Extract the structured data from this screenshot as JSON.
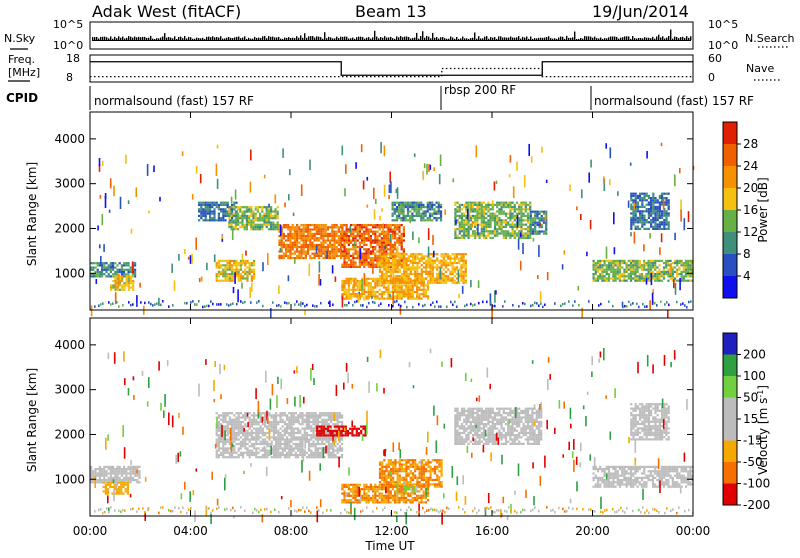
{
  "header": {
    "title": "Adak West (fitACF)",
    "beam": "Beam 13",
    "date": "19/Jun/2014"
  },
  "nsky_panel": {
    "left_label": "N.Sky",
    "right_label": "N.Search",
    "left_ticks": [
      "10^5",
      "10^0"
    ],
    "right_ticks": [
      "10^5",
      "10^0"
    ]
  },
  "freq_panel": {
    "left_label": "Freq.",
    "left_unit": "[MHz]",
    "right_label": "Nave",
    "left_ticks": [
      "18",
      "8"
    ],
    "right_ticks": [
      "60",
      "0"
    ],
    "freq_steps": [
      {
        "start_h": 0,
        "end_h": 10,
        "mhz": 15.5
      },
      {
        "start_h": 10,
        "end_h": 18,
        "mhz": 10.5
      },
      {
        "start_h": 18,
        "end_h": 24,
        "mhz": 15.5
      }
    ],
    "nave_steps": [
      {
        "start_h": 0,
        "end_h": 14,
        "value": 12
      },
      {
        "start_h": 14,
        "end_h": 18,
        "value": 30
      },
      {
        "start_h": 18,
        "end_h": 24,
        "value": 12
      }
    ]
  },
  "cpid": {
    "label": "CPID",
    "segments": [
      {
        "label": "normalsound (fast) 157 RF",
        "start_h": 0,
        "end_h": 14
      },
      {
        "label": "rbsp 200 RF",
        "start_h": 14,
        "end_h": 20
      },
      {
        "label": "normalsound (fast) 157 RF",
        "start_h": 20,
        "end_h": 24
      }
    ]
  },
  "axes": {
    "ylabel": "Slant Range [km]",
    "yticks": [
      "1000",
      "2000",
      "3000",
      "4000"
    ],
    "xlabel": "Time UT",
    "xticks": [
      "00:00",
      "04:00",
      "08:00",
      "12:00",
      "16:00",
      "20:00",
      "00:00"
    ]
  },
  "power_scale": {
    "title": "Power [dB]",
    "ticks": [
      "4",
      "8",
      "12",
      "16",
      "20",
      "24",
      "28"
    ]
  },
  "velocity_scale": {
    "title": "Velocity [m s",
    "title_sup": "-1",
    "title_end": "]",
    "ticks": [
      "200",
      "100",
      "50",
      "15",
      "-15",
      "-50",
      "-100",
      "-200"
    ]
  },
  "colors": {
    "power": [
      "#1010ee",
      "#2850c0",
      "#3f8f7a",
      "#66b046",
      "#f5c010",
      "#f59000",
      "#f06000",
      "#e02000"
    ],
    "velocity": [
      "#2020c0",
      "#2ea040",
      "#70d040",
      "#bcbcbc",
      "#bcbcbc",
      "#f5a800",
      "#f57000",
      "#e00000"
    ]
  },
  "chart_data": {
    "type": "heatmap",
    "x_range_hours": [
      0,
      24
    ],
    "y_range_km": [
      180,
      4600
    ],
    "grid": false,
    "power_colorbar_range_db": [
      0,
      32
    ],
    "velocity_colorbar_range_ms": [
      -250,
      250
    ],
    "power_echo_bands": [
      {
        "start_h": 0.0,
        "end_h": 1.8,
        "range_km": [
          950,
          1250
        ],
        "power_db": 10
      },
      {
        "start_h": 0.8,
        "end_h": 1.7,
        "range_km": [
          650,
          950
        ],
        "power_db": 18
      },
      {
        "start_h": 4.3,
        "end_h": 5.8,
        "range_km": [
          2200,
          2600
        ],
        "power_db": 8
      },
      {
        "start_h": 5.0,
        "end_h": 6.5,
        "range_km": [
          850,
          1300
        ],
        "power_db": 18
      },
      {
        "start_h": 5.5,
        "end_h": 7.5,
        "range_km": [
          2000,
          2500
        ],
        "power_db": 14
      },
      {
        "start_h": 7.5,
        "end_h": 10.0,
        "range_km": [
          1350,
          2100
        ],
        "power_db": 24
      },
      {
        "start_h": 10.0,
        "end_h": 12.5,
        "range_km": [
          1150,
          2100
        ],
        "power_db": 26
      },
      {
        "start_h": 10.0,
        "end_h": 13.5,
        "range_km": [
          450,
          900
        ],
        "power_db": 20
      },
      {
        "start_h": 11.5,
        "end_h": 15.0,
        "range_km": [
          800,
          1450
        ],
        "power_db": 20
      },
      {
        "start_h": 12.0,
        "end_h": 14.0,
        "range_km": [
          2200,
          2600
        ],
        "power_db": 10
      },
      {
        "start_h": 14.5,
        "end_h": 17.5,
        "range_km": [
          1800,
          2600
        ],
        "power_db": 14
      },
      {
        "start_h": 17.5,
        "end_h": 18.2,
        "range_km": [
          1900,
          2400
        ],
        "power_db": 10
      },
      {
        "start_h": 20.0,
        "end_h": 24.0,
        "range_km": [
          850,
          1300
        ],
        "power_db": 14
      },
      {
        "start_h": 21.5,
        "end_h": 23.0,
        "range_km": [
          2000,
          2800
        ],
        "power_db": 8
      }
    ],
    "velocity_echo_bands": [
      {
        "start_h": 0.0,
        "end_h": 2.0,
        "range_km": [
          950,
          1300
        ],
        "velocity_ms": 0
      },
      {
        "start_h": 0.5,
        "end_h": 1.5,
        "range_km": [
          700,
          950
        ],
        "velocity_ms": -30
      },
      {
        "start_h": 5.0,
        "end_h": 10.0,
        "range_km": [
          1500,
          2500
        ],
        "velocity_ms": 0
      },
      {
        "start_h": 9.0,
        "end_h": 11.0,
        "range_km": [
          2000,
          2200
        ],
        "velocity_ms": -150
      },
      {
        "start_h": 10.0,
        "end_h": 13.5,
        "range_km": [
          500,
          900
        ],
        "velocity_ms": -50
      },
      {
        "start_h": 11.5,
        "end_h": 14.0,
        "range_km": [
          850,
          1450
        ],
        "velocity_ms": -50
      },
      {
        "start_h": 12.5,
        "end_h": 13.0,
        "range_km": [
          750,
          850
        ],
        "velocity_ms": 60
      },
      {
        "start_h": 14.5,
        "end_h": 18.0,
        "range_km": [
          1800,
          2600
        ],
        "velocity_ms": 0
      },
      {
        "start_h": 20.0,
        "end_h": 24.0,
        "range_km": [
          850,
          1300
        ],
        "velocity_ms": 0
      },
      {
        "start_h": 21.5,
        "end_h": 23.0,
        "range_km": [
          1900,
          2700
        ],
        "velocity_ms": 0
      }
    ]
  }
}
